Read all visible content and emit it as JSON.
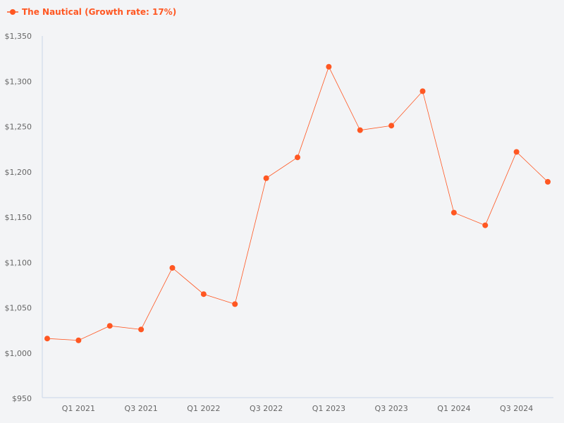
{
  "chart_data": {
    "type": "line",
    "legend": {
      "label": "The Nautical (Growth rate: 17%)",
      "placement": "top-left"
    },
    "series": [
      {
        "name": "The Nautical (Growth rate: 17%)",
        "values": [
          1016,
          1014,
          1030,
          1026,
          1094,
          1065,
          1054,
          1193,
          1216,
          1316,
          1246,
          1251,
          1289,
          1155,
          1141,
          1222,
          1189
        ]
      }
    ],
    "x_tick_labels": [
      {
        "index": 1,
        "label": "Q1 2021"
      },
      {
        "index": 3,
        "label": "Q3 2021"
      },
      {
        "index": 5,
        "label": "Q1 2022"
      },
      {
        "index": 7,
        "label": "Q3 2022"
      },
      {
        "index": 9,
        "label": "Q1 2023"
      },
      {
        "index": 11,
        "label": "Q3 2023"
      },
      {
        "index": 13,
        "label": "Q1 2024"
      },
      {
        "index": 15,
        "label": "Q3 2024"
      }
    ],
    "y_ticks": [
      950,
      1000,
      1050,
      1100,
      1150,
      1200,
      1250,
      1300,
      1350
    ],
    "y_tick_labels": [
      "$950",
      "$1,000",
      "$1,050",
      "$1,100",
      "$1,150",
      "$1,200",
      "$1,250",
      "$1,300",
      "$1,350"
    ],
    "ylim": [
      950,
      1350
    ],
    "grid": false,
    "color": "#ff5722",
    "axis_color": "#c9d6e8"
  }
}
